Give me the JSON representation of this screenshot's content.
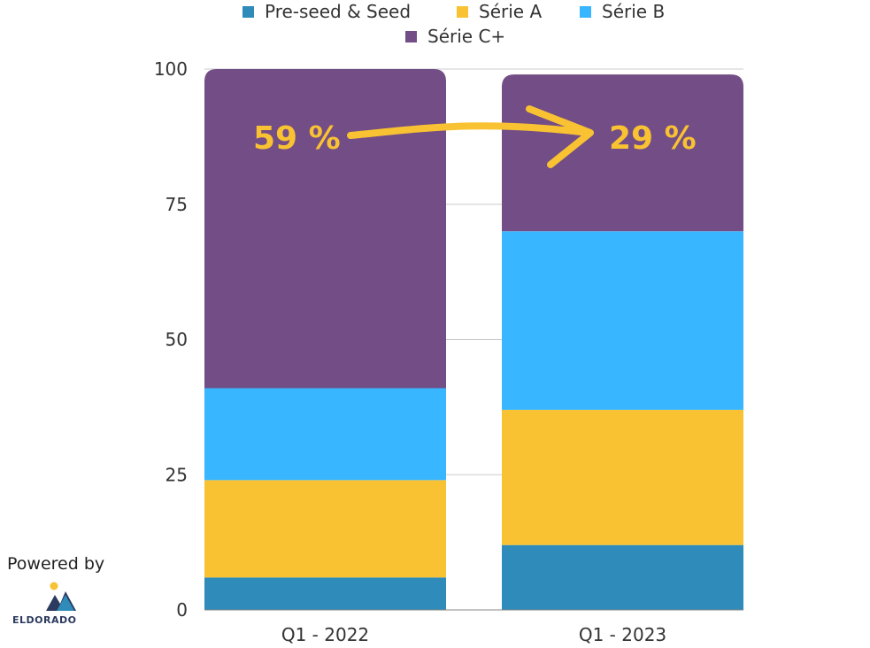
{
  "chart_data": {
    "type": "bar",
    "stacked": true,
    "categories": [
      "Q1 - 2022",
      "Q1 - 2023"
    ],
    "series": [
      {
        "name": "Pre-seed & Seed",
        "color": "#2e8bba",
        "values": [
          6,
          12
        ]
      },
      {
        "name": "Série A",
        "color": "#f8c232",
        "values": [
          18,
          25
        ]
      },
      {
        "name": "Série B",
        "color": "#38b6ff",
        "values": [
          17,
          33
        ]
      },
      {
        "name": "Série C+",
        "color": "#724d86",
        "values": [
          59,
          29
        ]
      }
    ],
    "yticks": [
      0,
      25,
      50,
      75,
      100
    ],
    "ylim": [
      0,
      100
    ],
    "grid": true,
    "legend_position": "top-center",
    "annotations": {
      "from_label": "59 %",
      "to_label": "29 %",
      "arrow_color": "#f8c232"
    }
  },
  "branding": {
    "powered_by": "Powered by",
    "name": "ELDORADO"
  }
}
